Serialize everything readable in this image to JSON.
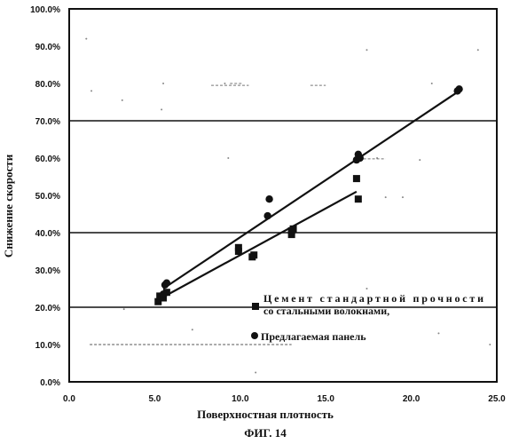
{
  "chart_data": {
    "type": "scatter",
    "xlabel": "Поверхностная плотность",
    "ylabel": "Снижение скорости",
    "figure_label": "ФИГ. 14",
    "xlim": [
      0,
      25
    ],
    "ylim": [
      0,
      100
    ],
    "x_ticks": [
      "0.0",
      "5.0",
      "10.0",
      "15.0",
      "20.0",
      "25.0"
    ],
    "y_ticks": [
      "0.0%",
      "10.0%",
      "20.0%",
      "30.0%",
      "40.0%",
      "50.0%",
      "60.0%",
      "70.0%",
      "80.0%",
      "90.0%",
      "100.0%"
    ],
    "grid_lines_y": [
      20,
      40,
      70
    ],
    "legend_position": "lower-right, inside plot",
    "series": [
      {
        "name": "Цемент стандартной прочности со стальными волокнами,",
        "marker": "square",
        "points": [
          [
            5.2,
            21.5
          ],
          [
            5.3,
            23
          ],
          [
            5.5,
            22.5
          ],
          [
            5.7,
            24
          ],
          [
            9.9,
            35
          ],
          [
            9.9,
            36
          ],
          [
            10.7,
            33.5
          ],
          [
            10.8,
            34
          ],
          [
            13,
            39.5
          ],
          [
            13,
            40.5
          ],
          [
            13.1,
            41
          ],
          [
            16.8,
            54.5
          ],
          [
            16.9,
            49
          ]
        ],
        "fit": [
          [
            5.2,
            22
          ],
          [
            16.8,
            51
          ]
        ]
      },
      {
        "name": "Предлагаемая панель",
        "marker": "circle",
        "points": [
          [
            5.5,
            23.5
          ],
          [
            5.6,
            26
          ],
          [
            5.7,
            26.5
          ],
          [
            11.6,
            44.5
          ],
          [
            11.7,
            49
          ],
          [
            16.8,
            59.5
          ],
          [
            16.9,
            61
          ],
          [
            17,
            60
          ],
          [
            22.7,
            78
          ],
          [
            22.8,
            78.5
          ]
        ],
        "fit": [
          [
            5.5,
            25
          ],
          [
            22.8,
            78
          ]
        ]
      }
    ]
  }
}
